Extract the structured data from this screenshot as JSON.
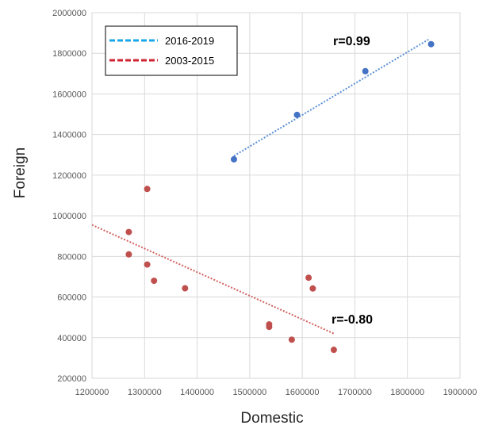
{
  "chart_data": {
    "type": "scatter",
    "xlabel": "Domestic",
    "ylabel": "Foreign",
    "xlim": [
      1200000,
      1900000
    ],
    "ylim": [
      200000,
      2000000
    ],
    "x_ticks": [
      "1200000",
      "1300000",
      "1400000",
      "1500000",
      "1600000",
      "1700000",
      "1800000",
      "1900000"
    ],
    "y_ticks": [
      "200000",
      "400000",
      "600000",
      "800000",
      "1000000",
      "1200000",
      "1400000",
      "1600000",
      "1800000",
      "2000000"
    ],
    "grid": true,
    "legend_position": "top-left",
    "legend": [
      {
        "label": "2016-2019",
        "color": "#1aa7e8"
      },
      {
        "label": "2003-2015",
        "color": "#d02331"
      }
    ],
    "series": [
      {
        "name": "2016-2019",
        "color": "#4472c4",
        "trend_color": "#5b8fd6",
        "points": [
          [
            1470000,
            1278000
          ],
          [
            1590000,
            1497000
          ],
          [
            1720000,
            1712000
          ],
          [
            1845000,
            1845000
          ]
        ],
        "trendline": [
          [
            1470000,
            1295000
          ],
          [
            1840000,
            1868000
          ]
        ],
        "annotation": "r=0.99"
      },
      {
        "name": "2003-2015",
        "color": "#c0504d",
        "trend_color": "#d0625f",
        "points": [
          [
            1270000,
            920000
          ],
          [
            1270000,
            810000
          ],
          [
            1305000,
            1132000
          ],
          [
            1305000,
            760000
          ],
          [
            1318000,
            680000
          ],
          [
            1377000,
            643000
          ],
          [
            1537000,
            465000
          ],
          [
            1537000,
            453000
          ],
          [
            1580000,
            390000
          ],
          [
            1612000,
            695000
          ],
          [
            1620000,
            642000
          ],
          [
            1660000,
            340000
          ]
        ],
        "trendline": [
          [
            1200000,
            955000
          ],
          [
            1660000,
            420000
          ]
        ],
        "annotation": "r=-0.80"
      }
    ]
  }
}
